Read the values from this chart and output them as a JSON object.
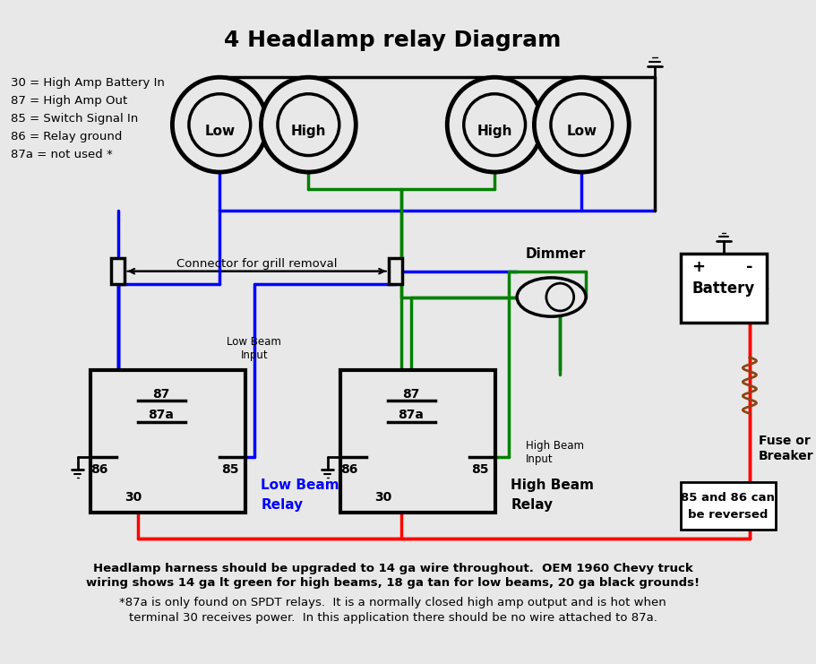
{
  "title": "4 Headlamp relay Diagram",
  "bg_color": "#e8e8e8",
  "legend_text": "30 = High Amp Battery In\n87 = High Amp Out\n85 = Switch Signal In\n86 = Relay ground\n87a = not used *",
  "bottom_text1": "Headlamp harness should be upgraded to 14 ga wire throughout.  OEM 1960 Chevy truck",
  "bottom_text2": "wiring shows 14 ga lt green for high beams, 18 ga tan for low beams, 20 ga black grounds!",
  "bottom_text3": "*87a is only found on SPDT relays.  It is a normally closed high amp output and is hot when",
  "bottom_text4": "terminal 30 receives power.  In this application there should be no wire attached to 87a.",
  "wire_blue": "#0000ff",
  "wire_green": "#008000",
  "wire_red": "#ff0000",
  "wire_black": "#000000",
  "wire_brown": "#8B4513",
  "headlamp_labels": [
    "Low",
    "High",
    "High",
    "Low"
  ],
  "relay1_label": "Low Beam\nRelay",
  "relay2_label": "High Beam\nRelay",
  "connector_label": "Connector for grill removal",
  "dimmer_label": "Dimmer",
  "battery_label": "Battery",
  "fuse_label": "Fuse or\nBreaker",
  "note_box": "85 and 86 can\nbe reversed",
  "low_beam_input": "Low Beam\nInput",
  "high_beam_input": "High Beam\nInput"
}
